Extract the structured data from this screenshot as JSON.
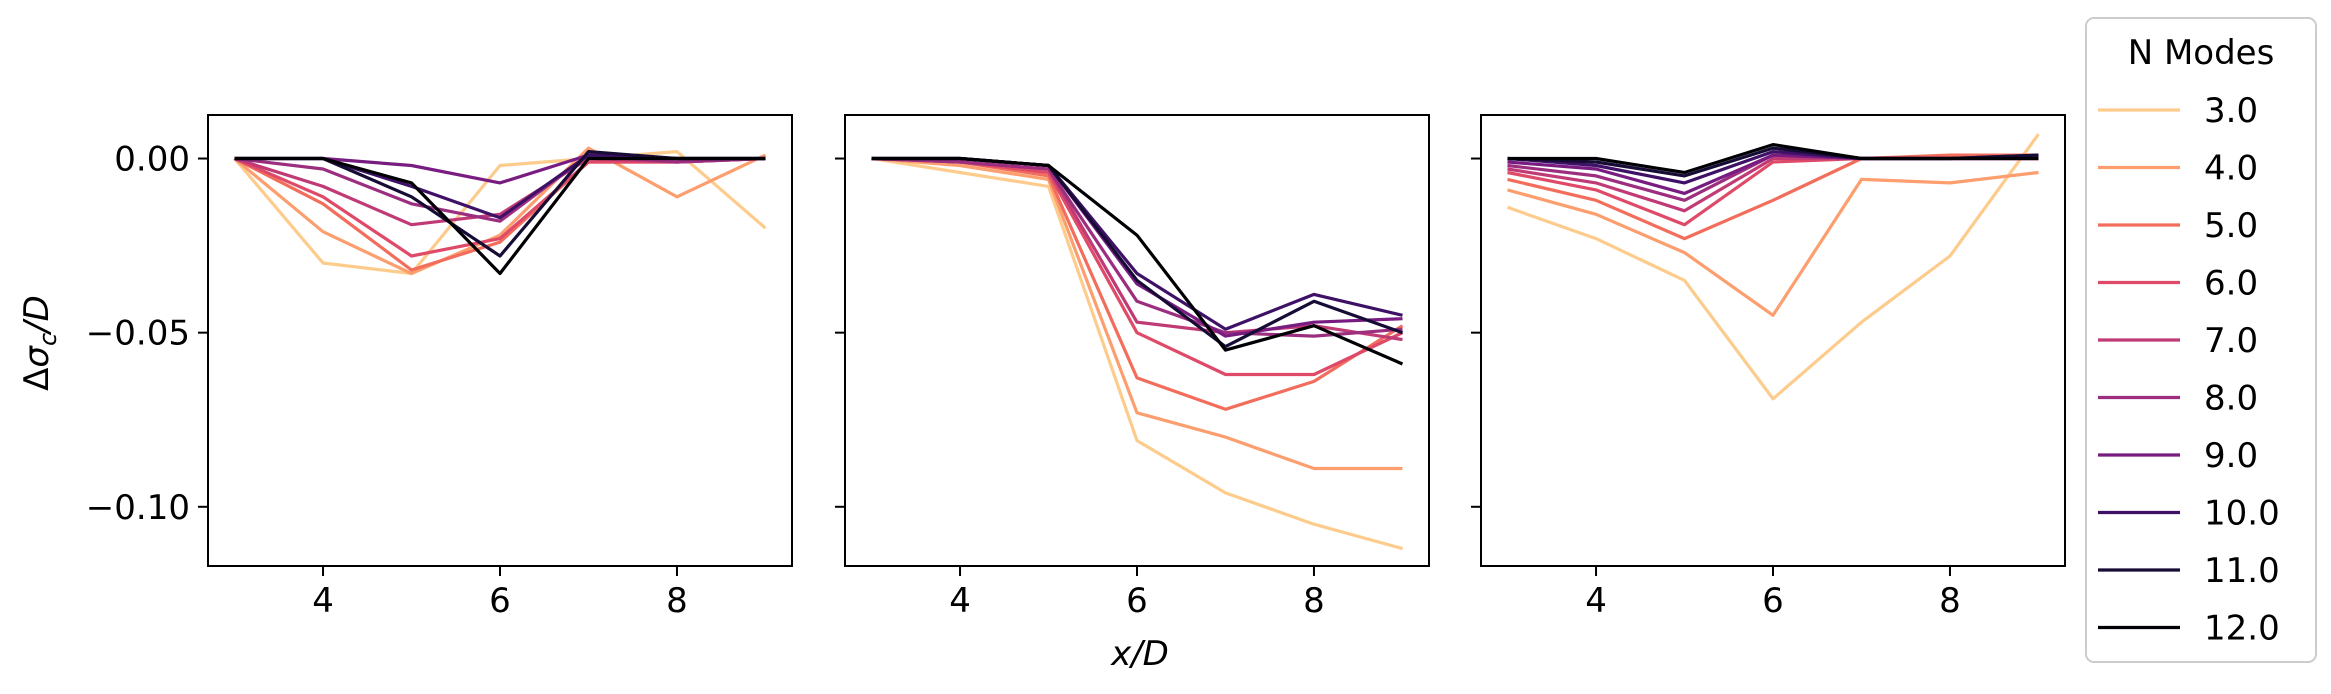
{
  "chart_data": {
    "type": "line",
    "ylabel": "Δσ_c/D",
    "xlabel": "x/D",
    "xlim": [
      2.7,
      9.3
    ],
    "ylim": [
      -0.117,
      0.0125
    ],
    "xticks": [
      4,
      6,
      8
    ],
    "xtick_labels": [
      "4",
      "6",
      "8"
    ],
    "yticks": [
      0.0,
      -0.05,
      -0.1
    ],
    "ytick_labels": [
      "0.00",
      "−0.05",
      "−0.10"
    ],
    "grid": false,
    "x": [
      3,
      4,
      5,
      6,
      7,
      8,
      9
    ],
    "legend": {
      "title": "N Modes",
      "placement": "outside-right",
      "entries": [
        "3.0",
        "4.0",
        "5.0",
        "6.0",
        "7.0",
        "8.0",
        "9.0",
        "10.0",
        "11.0",
        "12.0"
      ]
    },
    "series_colors": [
      "#fdcc8d",
      "#fc9e6e",
      "#f26d5c",
      "#de4a68",
      "#c03a76",
      "#9c2e7f",
      "#781c81",
      "#3e1166",
      "#160c35",
      "#000004"
    ],
    "panels": [
      {
        "series": [
          [
            0,
            -0.03,
            -0.033,
            -0.002,
            0.0,
            0.002,
            -0.02
          ],
          [
            0,
            -0.021,
            -0.033,
            -0.022,
            0.003,
            -0.011,
            0.001
          ],
          [
            0,
            -0.013,
            -0.032,
            -0.024,
            -0.001,
            -0.001,
            0.0
          ],
          [
            0,
            -0.011,
            -0.028,
            -0.023,
            -0.001,
            -0.001,
            0.0
          ],
          [
            0,
            -0.008,
            -0.019,
            -0.016,
            0.0,
            -0.001,
            0.0
          ],
          [
            0,
            -0.003,
            -0.013,
            -0.018,
            0.001,
            -0.001,
            0.0
          ],
          [
            0,
            0.0,
            -0.002,
            -0.007,
            0.001,
            0.0,
            0.0
          ],
          [
            0,
            0.0,
            -0.008,
            -0.017,
            0.001,
            0.0,
            0.0
          ],
          [
            0,
            0.0,
            -0.011,
            -0.028,
            0.002,
            0.0,
            0.0
          ],
          [
            0,
            0.0,
            -0.007,
            -0.033,
            0.0,
            0.0,
            0.0
          ]
        ]
      },
      {
        "series": [
          [
            0,
            -0.004,
            -0.008,
            -0.081,
            -0.096,
            -0.105,
            -0.112
          ],
          [
            0,
            -0.002,
            -0.006,
            -0.073,
            -0.08,
            -0.089,
            -0.089
          ],
          [
            0,
            -0.001,
            -0.005,
            -0.063,
            -0.072,
            -0.064,
            -0.048
          ],
          [
            0,
            -0.001,
            -0.004,
            -0.05,
            -0.062,
            -0.062,
            -0.05
          ],
          [
            0,
            -0.001,
            -0.003,
            -0.047,
            -0.05,
            -0.048,
            -0.052
          ],
          [
            0,
            -0.001,
            -0.003,
            -0.041,
            -0.05,
            -0.051,
            -0.049
          ],
          [
            0,
            0.0,
            -0.002,
            -0.036,
            -0.051,
            -0.047,
            -0.046
          ],
          [
            0,
            0.0,
            -0.002,
            -0.033,
            -0.049,
            -0.039,
            -0.045
          ],
          [
            0,
            0.0,
            -0.002,
            -0.035,
            -0.054,
            -0.041,
            -0.05
          ],
          [
            0,
            0.0,
            -0.002,
            -0.022,
            -0.055,
            -0.048,
            -0.059
          ]
        ]
      },
      {
        "series": [
          [
            -0.014,
            -0.023,
            -0.035,
            -0.069,
            -0.047,
            -0.028,
            0.007
          ],
          [
            -0.009,
            -0.016,
            -0.027,
            -0.045,
            -0.006,
            -0.007,
            -0.004
          ],
          [
            -0.006,
            -0.012,
            -0.023,
            -0.012,
            0.0,
            0.001,
            0.001
          ],
          [
            -0.004,
            -0.009,
            -0.019,
            -0.001,
            0.0,
            0.0,
            0.0
          ],
          [
            -0.003,
            -0.007,
            -0.015,
            0.0,
            0.0,
            0.0,
            0.0
          ],
          [
            -0.002,
            -0.005,
            -0.012,
            0.001,
            0.0,
            0.0,
            0.0
          ],
          [
            -0.001,
            -0.003,
            -0.01,
            0.001,
            0.0,
            0.0,
            0.0
          ],
          [
            0.0,
            -0.002,
            -0.007,
            0.002,
            0.0,
            0.0,
            0.001
          ],
          [
            0.0,
            -0.001,
            -0.005,
            0.003,
            0.0,
            0.0,
            0.001
          ],
          [
            0.0,
            0.0,
            -0.004,
            0.004,
            0.0,
            0.0,
            0.0
          ]
        ]
      }
    ]
  }
}
